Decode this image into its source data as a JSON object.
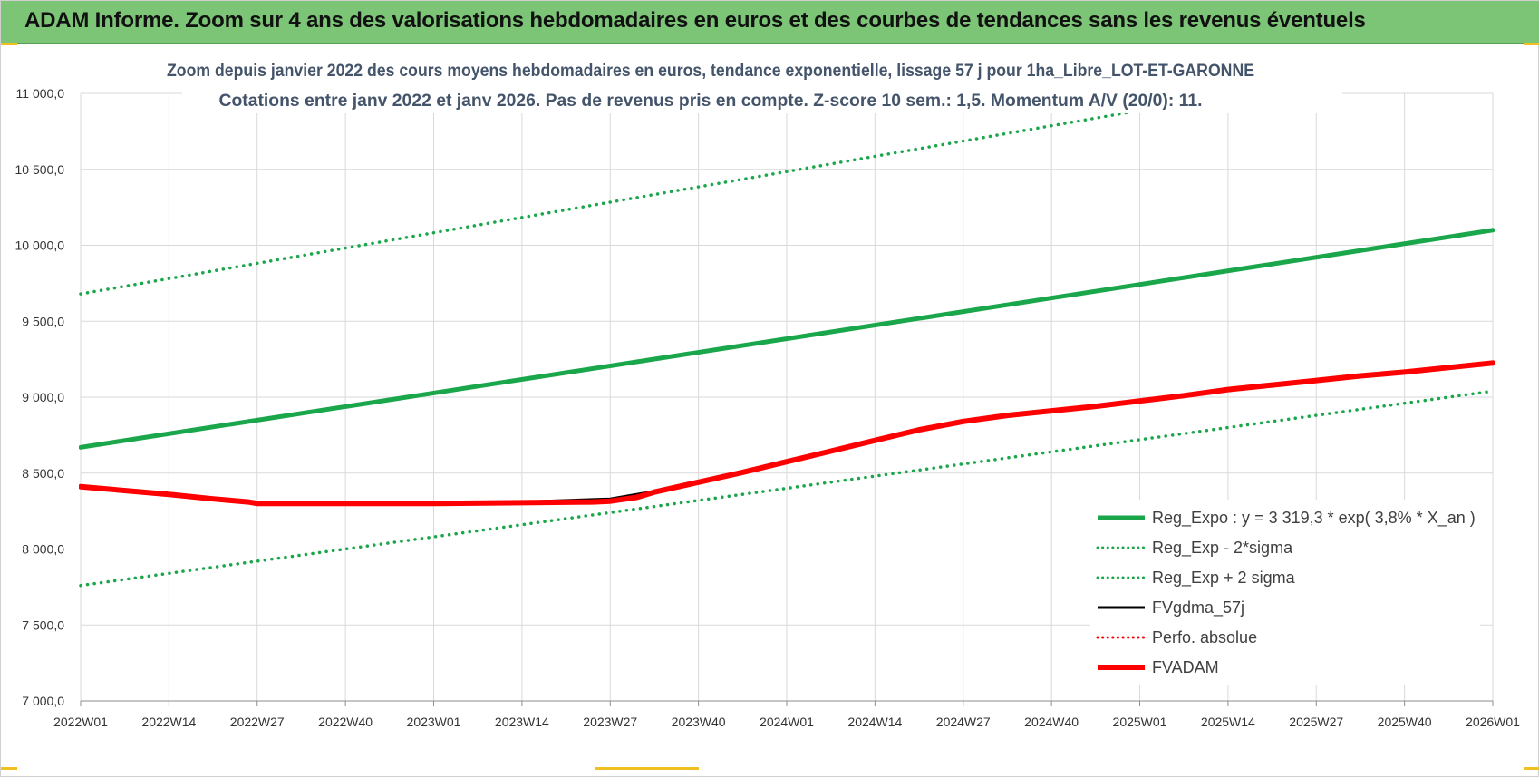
{
  "banner": {
    "title": "ADAM Informe. Zoom sur 4 ans des valorisations hebdomadaires en euros et des courbes de tendances sans les revenus éventuels"
  },
  "colors": {
    "banner_bg": "#7cc576",
    "reg_green": "#1aa64a",
    "adam_red": "#ff0000",
    "gdma_black": "#000000",
    "grid": "#d9d9d9",
    "title_text": "#44546a"
  },
  "chart_data": {
    "type": "line",
    "title": "Zoom depuis janvier 2022 des cours moyens hebdomadaires en euros, tendance exponentielle, lissage 57 j pour 1ha_Libre_LOT-ET-GARONNE",
    "subtitle": "Cotations entre janv 2022 et janv 2026. Pas de revenus pris en compte. Z-score 10 sem.: 1,5. Momentum A/V (20/0): 11.",
    "xlabel": "",
    "ylabel": "",
    "ylim": [
      7000,
      11000
    ],
    "yticks": [
      "7 000,0",
      "7 500,0",
      "8 000,0",
      "8 500,0",
      "9 000,0",
      "9 500,0",
      "10 000,0",
      "10 500,0",
      "11 000,0"
    ],
    "xticks": [
      "2022W01",
      "2022W14",
      "2022W27",
      "2022W40",
      "2023W01",
      "2023W14",
      "2023W27",
      "2023W40",
      "2024W01",
      "2024W14",
      "2024W27",
      "2024W40",
      "2025W01",
      "2025W14",
      "2025W27",
      "2025W40",
      "2026W01"
    ],
    "grid": true,
    "legend_position": "bottom-right",
    "series": [
      {
        "name": "Reg_Expo : y = 3 319,3 * exp( 3,8% *  X_an )",
        "style": "solid-thick",
        "color": "#1aa64a",
        "x_index": [
          0,
          16
        ],
        "values": [
          8670,
          10100
        ]
      },
      {
        "name": "Reg_Exp - 2*sigma",
        "style": "dotted",
        "color": "#1aa64a",
        "x_index": [
          0,
          16
        ],
        "values": [
          7760,
          9040
        ]
      },
      {
        "name": "Reg_Exp + 2 sigma",
        "style": "dotted",
        "color": "#1aa64a",
        "x_index": [
          0,
          16
        ],
        "values": [
          9680,
          11290
        ]
      },
      {
        "name": "FVgdma_57j",
        "style": "solid",
        "color": "#000000",
        "x_index": [
          0,
          1,
          1.5,
          1.9,
          2,
          3,
          4,
          5,
          6,
          6.5,
          7,
          7.5,
          8,
          8.5,
          9,
          9.5,
          10,
          10.5,
          11,
          11.5,
          12,
          12.5,
          13,
          13.5,
          14,
          14.5,
          15,
          15.5,
          16
        ],
        "values": [
          8410,
          8360,
          8330,
          8315,
          8310,
          8300,
          8300,
          8310,
          8330,
          8380,
          8445,
          8510,
          8580,
          8650,
          8720,
          8790,
          8840,
          8880,
          8910,
          8940,
          8975,
          9010,
          9050,
          9080,
          9110,
          9140,
          9165,
          9195,
          9225
        ]
      },
      {
        "name": "Perfo. absolue",
        "style": "dotted",
        "color": "#ff0000",
        "x_index": [],
        "values": []
      },
      {
        "name": "FVADAM",
        "style": "solid-thick",
        "color": "#ff0000",
        "x_index": [
          0,
          1,
          1.5,
          1.9,
          2,
          3,
          4,
          5,
          5.8,
          6,
          6.3,
          6.5,
          7,
          7.5,
          8,
          8.5,
          9,
          9.5,
          10,
          10.5,
          11,
          11.5,
          12,
          12.5,
          13,
          13.5,
          14,
          14.5,
          15,
          15.5,
          16
        ],
        "values": [
          8410,
          8360,
          8330,
          8310,
          8300,
          8300,
          8300,
          8305,
          8310,
          8315,
          8340,
          8375,
          8440,
          8505,
          8575,
          8645,
          8715,
          8785,
          8840,
          8880,
          8910,
          8940,
          8975,
          9010,
          9050,
          9080,
          9110,
          9140,
          9165,
          9195,
          9225
        ]
      }
    ]
  }
}
